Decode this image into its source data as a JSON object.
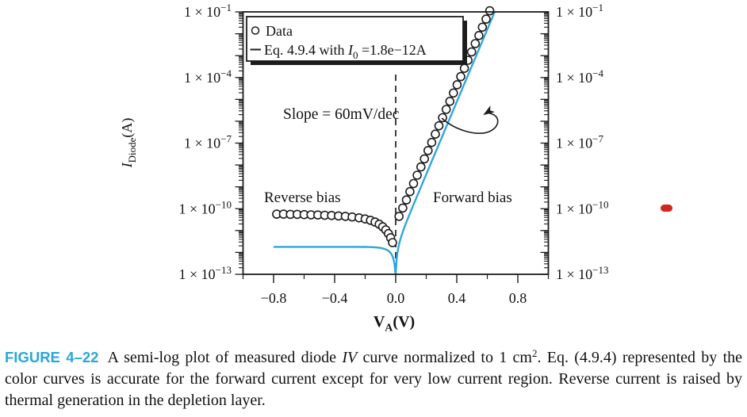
{
  "colors": {
    "curve": "#2fa7da",
    "axis": "#1c1c1c",
    "text": "#111111",
    "figure_label": "#29a8d8",
    "red_dash": "#d3251e",
    "dashed_line": "#2b2b2b"
  },
  "chart_data": {
    "type": "scatter",
    "title": "",
    "xlabel": "VA(V)",
    "ylabel": "IDiode(A)",
    "x_axis": {
      "min": -1.0,
      "max": 1.0,
      "major_tick_values": [
        -0.8,
        -0.4,
        0.0,
        0.4,
        0.8
      ],
      "major_tick_labels": [
        "−0.8",
        "−0.4",
        "0.0",
        "0.4",
        "0.8"
      ],
      "minor_tick_values": [
        -1.0,
        -0.6,
        -0.2,
        0.2,
        0.6,
        1.0
      ]
    },
    "y_axis": {
      "scale": "log10",
      "unit": "A",
      "log_min": -13,
      "log_max": -1,
      "labeled_exponents": [
        -1,
        -4,
        -7,
        -10,
        -13
      ],
      "label_mantissa": "1 × 10",
      "mirrored_right_axis": true
    },
    "series": [
      {
        "name": "Data",
        "kind": "scatter",
        "marker": "open-circle",
        "color": "#1c1c1c",
        "points_v_logi": [
          [
            -0.78,
            -10.25
          ],
          [
            -0.735,
            -10.25
          ],
          [
            -0.69,
            -10.26
          ],
          [
            -0.645,
            -10.26
          ],
          [
            -0.6,
            -10.27
          ],
          [
            -0.555,
            -10.28
          ],
          [
            -0.51,
            -10.29
          ],
          [
            -0.465,
            -10.3
          ],
          [
            -0.42,
            -10.31
          ],
          [
            -0.375,
            -10.33
          ],
          [
            -0.33,
            -10.35
          ],
          [
            -0.285,
            -10.38
          ],
          [
            -0.24,
            -10.42
          ],
          [
            -0.2,
            -10.47
          ],
          [
            -0.165,
            -10.53
          ],
          [
            -0.135,
            -10.61
          ],
          [
            -0.108,
            -10.71
          ],
          [
            -0.085,
            -10.83
          ],
          [
            -0.065,
            -10.97
          ],
          [
            -0.048,
            -11.14
          ],
          [
            -0.033,
            -11.33
          ],
          [
            -0.021,
            -11.55
          ],
          [
            0.022,
            -10.35
          ],
          [
            0.046,
            -9.97
          ],
          [
            0.07,
            -9.6
          ],
          [
            0.093,
            -9.22
          ],
          [
            0.117,
            -8.85
          ],
          [
            0.141,
            -8.47
          ],
          [
            0.165,
            -8.09
          ],
          [
            0.188,
            -7.72
          ],
          [
            0.212,
            -7.34
          ],
          [
            0.236,
            -6.97
          ],
          [
            0.26,
            -6.59
          ],
          [
            0.283,
            -6.21
          ],
          [
            0.307,
            -5.84
          ],
          [
            0.331,
            -5.46
          ],
          [
            0.355,
            -5.09
          ],
          [
            0.378,
            -4.71
          ],
          [
            0.402,
            -4.33
          ],
          [
            0.426,
            -3.96
          ],
          [
            0.45,
            -3.58
          ],
          [
            0.473,
            -3.21
          ],
          [
            0.497,
            -2.83
          ],
          [
            0.521,
            -2.45
          ],
          [
            0.545,
            -2.08
          ],
          [
            0.568,
            -1.7
          ],
          [
            0.592,
            -1.33
          ],
          [
            0.616,
            -0.95
          ]
        ]
      },
      {
        "name": "Eq. 4.9.4 with I0 =1.8e−12A",
        "kind": "line",
        "color": "#2fa7da",
        "model": {
          "I0_A": 1.8e-12,
          "slope_mV_per_decade": 60,
          "VT_forward_V": 0.0262,
          "VT_reverse_shape_V": 0.045,
          "V_start": -0.8,
          "V_end": 0.66
        }
      }
    ],
    "zero_bias_dashed_line_x": 0.0,
    "annotations": {
      "slope_text": "Slope = 60mV/dec",
      "reverse_bias_text": "Reverse bias",
      "forward_bias_text": "Forward bias"
    },
    "legend": {
      "item_data_label": "Data",
      "item_eq_segments": [
        {
          "t": "Eq. 4.9.4 with "
        },
        {
          "t": "I",
          "style": "italic"
        },
        {
          "t": "0",
          "style": "sub"
        },
        {
          "t": " =1.8e−12A"
        }
      ]
    },
    "xlabel_segments": [
      {
        "t": "V"
      },
      {
        "t": "A",
        "style": "sub"
      },
      {
        "t": "(V)"
      }
    ],
    "ylabel_segments": [
      {
        "t": "I",
        "style": "italic"
      },
      {
        "t": "Diode",
        "style": "sub"
      },
      {
        "t": "(A)"
      }
    ]
  },
  "caption": {
    "label": "FIGURE 4–22",
    "segments": [
      {
        "t": "A semi-log plot of measured diode "
      },
      {
        "t": "IV",
        "style": "italic"
      },
      {
        "t": " curve normalized to 1 cm"
      },
      {
        "t": "2",
        "style": "sup"
      },
      {
        "t": ". Eq. (4.9.4) represented by the color curves is accurate for the forward current except for very low current region. Reverse current is raised by thermal generation in the depletion layer."
      }
    ]
  },
  "red_dash_marker": {
    "color": "#d3251e"
  }
}
